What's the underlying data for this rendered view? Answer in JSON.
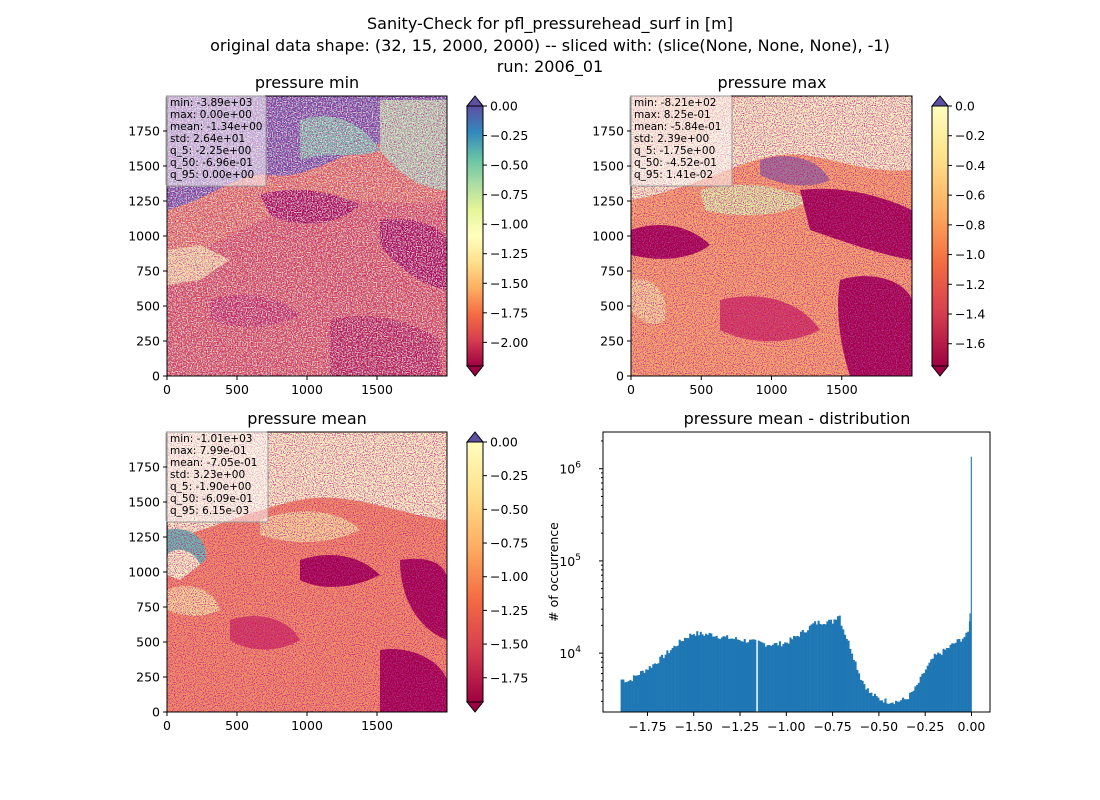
{
  "figure": {
    "suptitle": [
      "Sanity-Check for pfl_pressurehead_surf in [m]",
      "original data shape: (32, 15, 2000, 2000) -- sliced with: (slice(None, None, None), -1)",
      "run: 2006_01"
    ]
  },
  "chart_data": [
    {
      "type": "heatmap",
      "title": "pressure min",
      "colormap": "Spectral",
      "xlim": [
        0,
        2000
      ],
      "ylim": [
        0,
        2000
      ],
      "xticks": [
        "0",
        "500",
        "1000",
        "1500"
      ],
      "yticks": [
        "0",
        "250",
        "500",
        "750",
        "1000",
        "1250",
        "1500",
        "1750"
      ],
      "colorbar": {
        "vmin": -2.2,
        "vmax": 0.0,
        "extend": "both",
        "ticks": [
          0.0,
          -0.25,
          -0.5,
          -0.75,
          -1.0,
          -1.25,
          -1.5,
          -1.75,
          -2.0
        ],
        "ticklabels": [
          "0.00",
          "−0.25",
          "−0.50",
          "−0.75",
          "−1.00",
          "−1.25",
          "−1.50",
          "−1.75",
          "−2.00"
        ]
      },
      "stats": [
        "min: -3.89e+03",
        "max: 0.00e+00",
        "mean: -1.34e+00",
        "std: 2.64e+01",
        "q_5: -2.25e+00",
        "q_50: -6.96e-01",
        "q_95: 0.00e+00"
      ]
    },
    {
      "type": "heatmap",
      "title": "pressure max",
      "colormap": "Spectral",
      "xlim": [
        0,
        2000
      ],
      "ylim": [
        0,
        2000
      ],
      "xticks": [
        "0",
        "500",
        "1000",
        "1500"
      ],
      "yticks": [
        "0",
        "250",
        "500",
        "750",
        "1000",
        "1250",
        "1500",
        "1750"
      ],
      "colorbar": {
        "vmin": -1.75,
        "vmax": 0.0,
        "extend": "both",
        "ticks": [
          0.0,
          -0.2,
          -0.4,
          -0.6,
          -0.8,
          -1.0,
          -1.2,
          -1.4,
          -1.6
        ],
        "ticklabels": [
          "0.0",
          "−0.2",
          "−0.4",
          "−0.6",
          "−0.8",
          "−1.0",
          "−1.2",
          "−1.4",
          "−1.6"
        ]
      },
      "stats": [
        "min: -8.21e+02",
        "max: 8.25e-01",
        "mean: -5.84e-01",
        "std: 2.39e+00",
        "q_5: -1.75e+00",
        "q_50: -4.52e-01",
        "q_95: 1.41e-02"
      ]
    },
    {
      "type": "heatmap",
      "title": "pressure mean",
      "colormap": "Spectral",
      "xlim": [
        0,
        2000
      ],
      "ylim": [
        0,
        2000
      ],
      "xticks": [
        "0",
        "500",
        "1000",
        "1500"
      ],
      "yticks": [
        "0",
        "250",
        "500",
        "750",
        "1000",
        "1250",
        "1500",
        "1750"
      ],
      "colorbar": {
        "vmin": -1.93,
        "vmax": 0.0,
        "extend": "both",
        "ticks": [
          0.0,
          -0.25,
          -0.5,
          -0.75,
          -1.0,
          -1.25,
          -1.5,
          -1.75
        ],
        "ticklabels": [
          "0.00",
          "−0.25",
          "−0.50",
          "−0.75",
          "−1.00",
          "−1.25",
          "−1.50",
          "−1.75"
        ]
      },
      "stats": [
        "min: -1.01e+03",
        "max: 7.99e-01",
        "mean: -7.05e-01",
        "std: 3.23e+00",
        "q_5: -1.90e+00",
        "q_50: -6.09e-01",
        "q_95: 6.15e-03"
      ]
    },
    {
      "type": "bar",
      "title": "pressure mean - distribution",
      "ylabel": "# of occurrence",
      "yscale": "log",
      "color": "#1f77b4",
      "xlim": [
        -1.99,
        0.1
      ],
      "ylim": [
        2300,
        2500000
      ],
      "xticks": [
        -1.75,
        -1.5,
        -1.25,
        -1.0,
        -0.75,
        -0.5,
        -0.25,
        0.0
      ],
      "xticklabels": [
        "−1.75",
        "−1.50",
        "−1.25",
        "−1.00",
        "−0.75",
        "−0.50",
        "−0.25",
        "0.00"
      ],
      "yticks": [
        10000,
        100000,
        1000000
      ],
      "yticklabels": [
        "10",
        "10",
        "10"
      ],
      "ytickexp": [
        "4",
        "5",
        "6"
      ],
      "bin_width": 0.0095,
      "gap_at": -1.16,
      "envelope": [
        [
          -1.895,
          5200
        ],
        [
          -1.85,
          5000
        ],
        [
          -1.8,
          5900
        ],
        [
          -1.75,
          6800
        ],
        [
          -1.7,
          8000
        ],
        [
          -1.65,
          9800
        ],
        [
          -1.6,
          12000
        ],
        [
          -1.55,
          14500
        ],
        [
          -1.5,
          16500
        ],
        [
          -1.45,
          16000
        ],
        [
          -1.4,
          16000
        ],
        [
          -1.35,
          15000
        ],
        [
          -1.3,
          14500
        ],
        [
          -1.25,
          14000
        ],
        [
          -1.2,
          13500
        ],
        [
          -1.15,
          13000
        ],
        [
          -1.1,
          12500
        ],
        [
          -1.05,
          12500
        ],
        [
          -1.0,
          13000
        ],
        [
          -0.95,
          15000
        ],
        [
          -0.9,
          17500
        ],
        [
          -0.85,
          21000
        ],
        [
          -0.8,
          22000
        ],
        [
          -0.75,
          22000
        ],
        [
          -0.715,
          27000
        ],
        [
          -0.7,
          20000
        ],
        [
          -0.65,
          11000
        ],
        [
          -0.6,
          5500
        ],
        [
          -0.55,
          3700
        ],
        [
          -0.5,
          3200
        ],
        [
          -0.45,
          3000
        ],
        [
          -0.4,
          3000
        ],
        [
          -0.35,
          3200
        ],
        [
          -0.3,
          4200
        ],
        [
          -0.25,
          6500
        ],
        [
          -0.2,
          9200
        ],
        [
          -0.15,
          10500
        ],
        [
          -0.1,
          12500
        ],
        [
          -0.05,
          14500
        ],
        [
          -0.02,
          16000
        ],
        [
          -0.005,
          27000
        ],
        [
          0.0,
          1350000
        ],
        [
          0.005,
          2300
        ]
      ]
    }
  ]
}
